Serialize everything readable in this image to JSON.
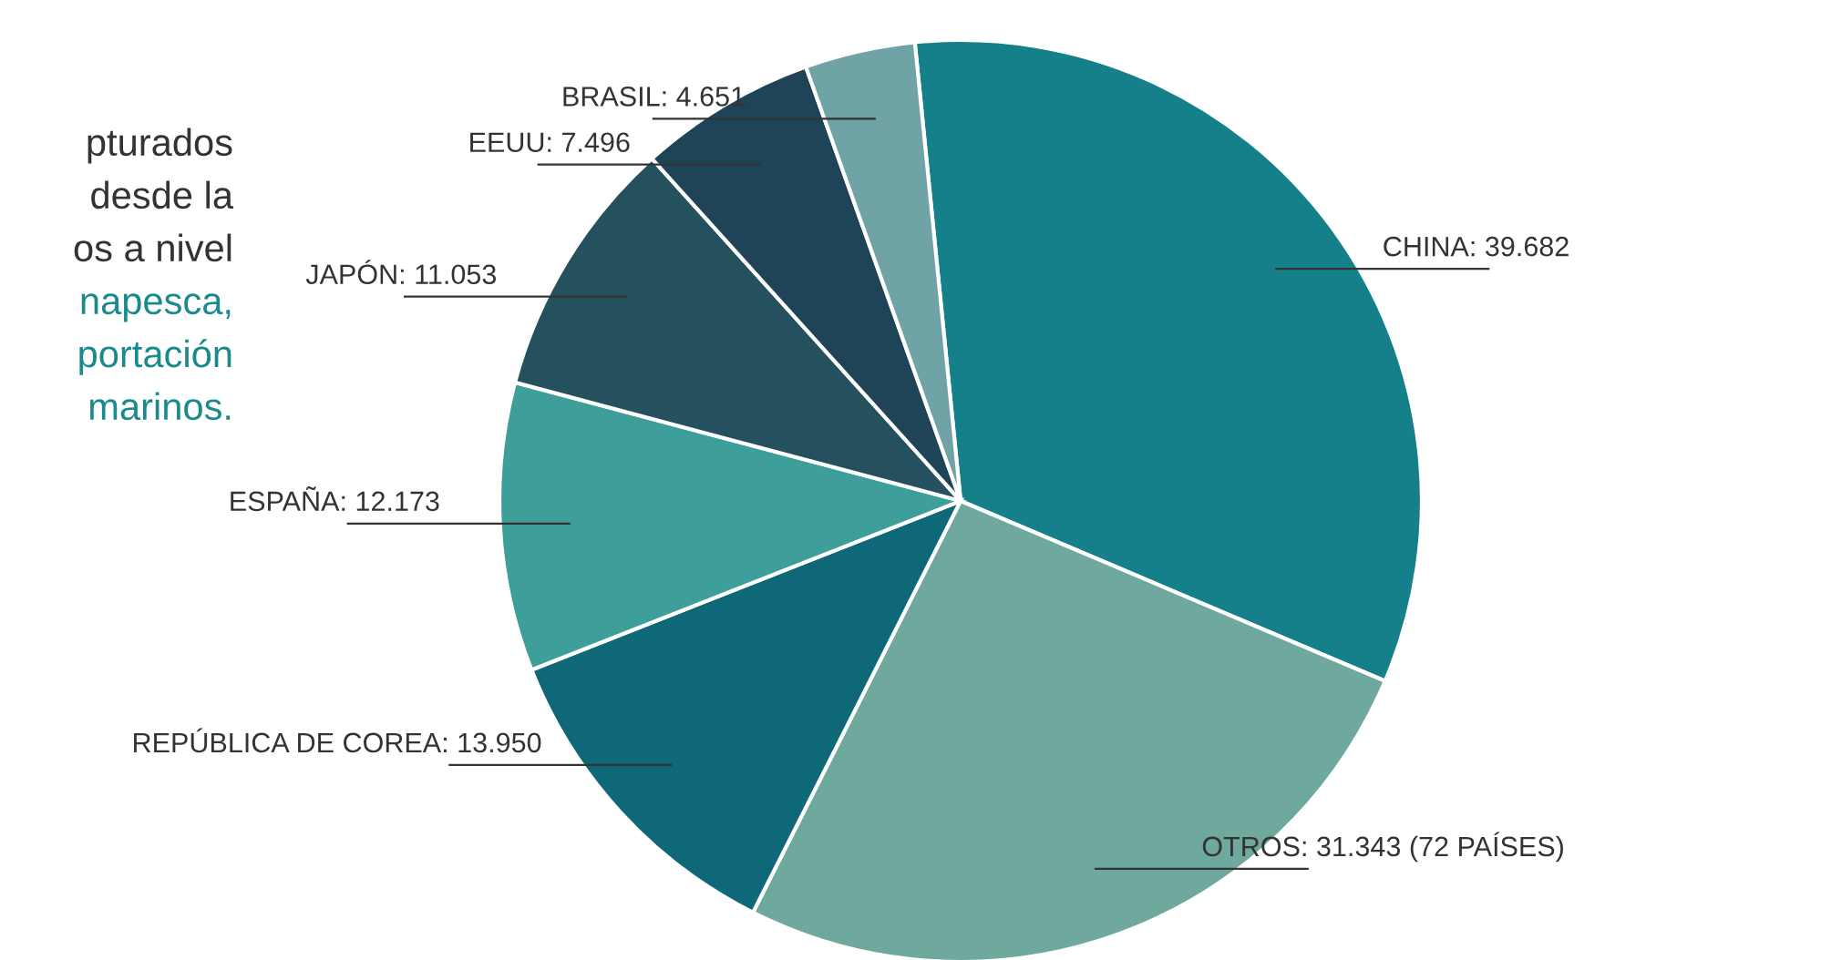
{
  "chart_data": {
    "type": "pie",
    "categories": [
      "CHINA",
      "OTROS",
      "REPÚBLICA DE COREA",
      "ESPAÑA",
      "JAPÓN",
      "EEUU",
      "BRASIL"
    ],
    "values": [
      39682,
      31343,
      13950,
      12173,
      11053,
      7496,
      4651
    ],
    "value_labels": [
      "39.682",
      "31.343 (72 PAÍSES)",
      "13.950",
      "12.173",
      "11.053",
      "7.496",
      "4.651"
    ],
    "colors": [
      "#15808a",
      "#6fa89c",
      "#0e6878",
      "#3d9e9a",
      "#25505e",
      "#1f4457",
      "#6fa3a6"
    ],
    "legend": false,
    "annotations": [
      "pturados",
      "desde la",
      "os a nivel",
      "napesca,",
      "portación",
      "marinos."
    ]
  }
}
